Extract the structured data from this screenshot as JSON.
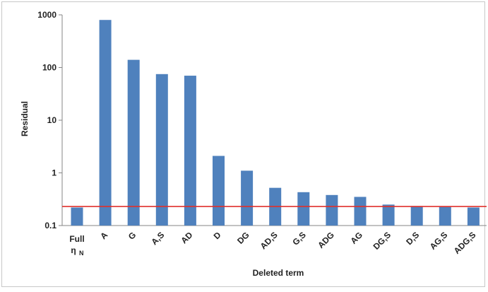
{
  "chart_data": {
    "type": "bar",
    "title": "",
    "xlabel": "Deleted term",
    "ylabel": "Residual",
    "yscale": "log",
    "ylim": [
      0.1,
      1000
    ],
    "yticks": [
      "0.1",
      "1",
      "10",
      "100",
      "1000"
    ],
    "grid": false,
    "categories": [
      "Full η_N",
      "A",
      "G",
      "A,S",
      "AD",
      "D",
      "DG",
      "AD,S",
      "G,S",
      "ADG",
      "AG",
      "DG,S",
      "D,S",
      "AG,S",
      "ADG,S"
    ],
    "category_display": [
      {
        "main": "Full",
        "sub_base": "η",
        "sub_index": "N"
      },
      {
        "main": "A"
      },
      {
        "main": "G"
      },
      {
        "main": "A,S"
      },
      {
        "main": "AD"
      },
      {
        "main": "D"
      },
      {
        "main": "DG"
      },
      {
        "main": "AD,S"
      },
      {
        "main": "G,S"
      },
      {
        "main": "ADG"
      },
      {
        "main": "AG"
      },
      {
        "main": "DG,S"
      },
      {
        "main": "D,S"
      },
      {
        "main": "AG,S"
      },
      {
        "main": "ADG,S"
      }
    ],
    "values": [
      0.22,
      800,
      140,
      75,
      70,
      2.1,
      1.1,
      0.52,
      0.43,
      0.38,
      0.35,
      0.25,
      0.235,
      0.23,
      0.22
    ],
    "reference_line": {
      "value": 0.23,
      "color": "#e0312b"
    },
    "bar_color": "#4f81bd"
  }
}
